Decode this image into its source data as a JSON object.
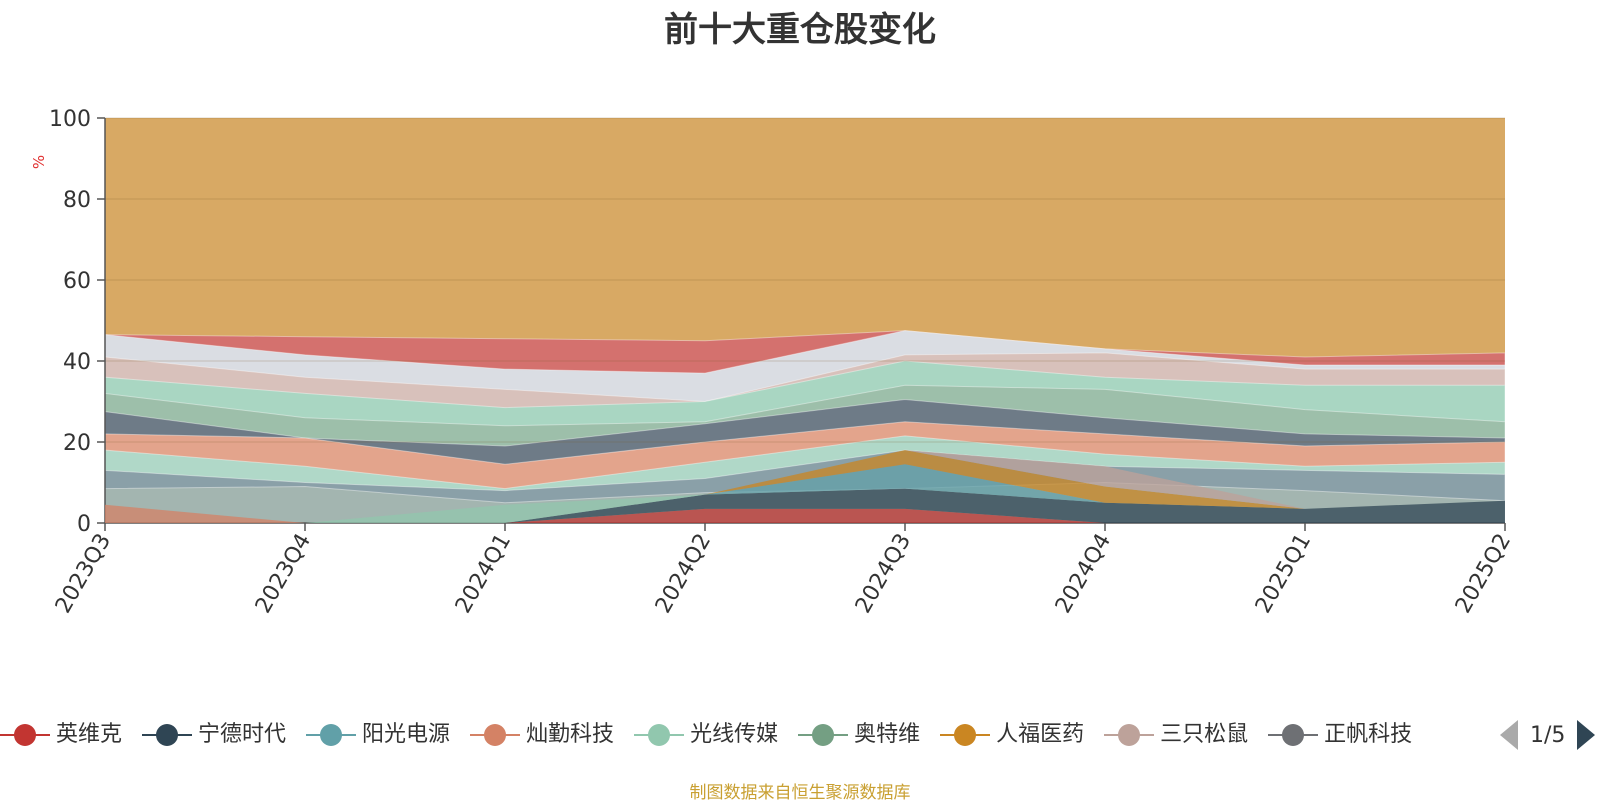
{
  "chart_data": {
    "type": "area",
    "stacked": true,
    "title": "前十大重仓股变化",
    "ylabel": "%",
    "ylim": [
      0,
      100
    ],
    "y_ticks": [
      "0",
      "20",
      "40",
      "60",
      "80",
      "100"
    ],
    "categories": [
      "2023Q3",
      "2023Q4",
      "2024Q1",
      "2024Q2",
      "2024Q3",
      "2024Q4",
      "2025Q1",
      "2025Q2"
    ],
    "grid": true,
    "legend_position": "bottom",
    "series": [
      {
        "name": "英维克",
        "color": "#c23531",
        "values": [
          0,
          0,
          0,
          3.5,
          3.5,
          0,
          0,
          0
        ]
      },
      {
        "name": "宁德时代",
        "color": "#2f4554",
        "values": [
          0,
          0,
          0,
          3.5,
          5,
          5,
          3.5,
          5.5
        ]
      },
      {
        "name": "阳光电源",
        "color": "#61a0a8",
        "values": [
          0,
          0,
          0,
          0,
          6,
          0,
          0,
          0
        ]
      },
      {
        "name": "灿勤科技",
        "color": "#d48265",
        "values": [
          4.5,
          0,
          0,
          0,
          0,
          0,
          0,
          0
        ]
      },
      {
        "name": "光线传媒",
        "color": "#91c7ae",
        "values": [
          0,
          0,
          4.5,
          0,
          0,
          0,
          0,
          0
        ]
      },
      {
        "name": "奥特维",
        "color": "#749f83",
        "values": [
          0,
          0,
          0,
          0,
          0,
          0,
          0,
          0
        ]
      },
      {
        "name": "人福医药",
        "color": "#ca8622",
        "values": [
          0,
          0,
          0,
          0,
          3.5,
          4,
          0,
          0
        ]
      },
      {
        "name": "三只松鼠",
        "color": "#bda29a",
        "values": [
          0,
          0,
          0,
          0,
          0,
          5,
          0,
          0
        ]
      }
    ],
    "background_band": {
      "color": "#d8a964",
      "top": 100
    }
  },
  "pager": {
    "text": "1/5"
  },
  "legend_partial": "正帆科技",
  "source_note": "制图数据来自恒生聚源数据库"
}
